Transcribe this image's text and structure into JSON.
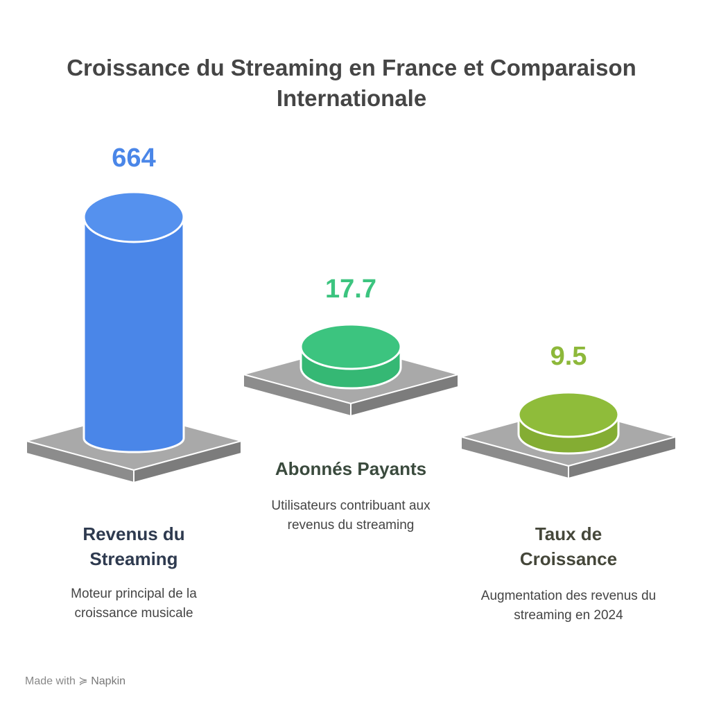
{
  "title": "Croissance du Streaming en France et Comparaison Internationale",
  "items": [
    {
      "value": "664",
      "label": "Revenus du Streaming",
      "description": "Moteur principal de la croissance musicale"
    },
    {
      "value": "17.7",
      "label": "Abonnés Payants",
      "description": "Utilisateurs contribuant aux revenus du streaming"
    },
    {
      "value": "9.5",
      "label": "Taux de Croissance",
      "description": "Augmentation des revenus du streaming en 2024"
    }
  ],
  "footer": {
    "prefix": "Made with",
    "brand": "Napkin"
  }
}
